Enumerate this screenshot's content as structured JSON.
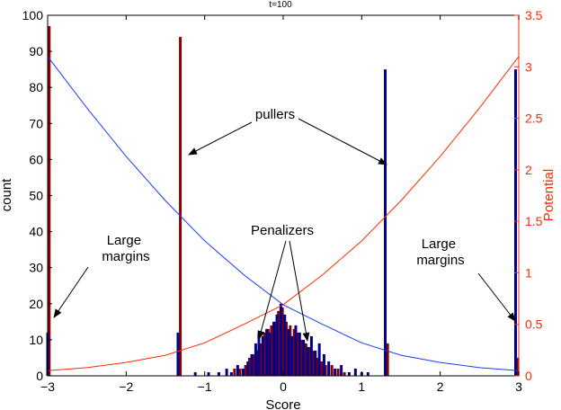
{
  "chart_data": {
    "type": "bar",
    "title": "t=100",
    "xlabel": "Score",
    "ylabel": "count",
    "y2label": "Potential",
    "xlim": [
      -3,
      3
    ],
    "ylim": [
      0,
      100
    ],
    "y2lim": [
      0,
      3.5
    ],
    "xticks": [
      -3,
      -2,
      -1,
      0,
      1,
      2,
      3
    ],
    "xtick_labels": [
      "−3",
      "−2",
      "−1",
      "0",
      "1",
      "2",
      "3"
    ],
    "yticks": [
      0,
      10,
      20,
      30,
      40,
      50,
      60,
      70,
      80,
      90,
      100
    ],
    "ytick_labels": [
      "0",
      "10",
      "20",
      "30",
      "40",
      "50",
      "60",
      "70",
      "80",
      "90",
      "100"
    ],
    "y2ticks": [
      0,
      0.5,
      1,
      1.5,
      2,
      2.5,
      3,
      3.5
    ],
    "y2tick_labels": [
      "0",
      "0.5",
      "1",
      "1.5",
      "2",
      "2.5",
      "3",
      "3.5"
    ],
    "colors": {
      "red_series": "#8b0000",
      "blue_series": "#00008b",
      "potential_red": "#ff2a00",
      "potential_blue": "#1a3cff",
      "right_axis": "#ff2a00",
      "annotation": "#000000"
    },
    "series": [
      {
        "color_key": "red_series",
        "x": [
          -2.98,
          -1.31,
          1.33,
          2.99,
          -0.62,
          -0.55,
          -0.48,
          -0.43,
          -0.38,
          -0.34,
          -0.29,
          -0.24,
          -0.19,
          -0.15,
          -0.1,
          -0.06,
          -0.01,
          0.04,
          0.09,
          0.14,
          0.19,
          0.24,
          0.29,
          0.34,
          0.39,
          0.44,
          0.49,
          0.54,
          0.62,
          0.7,
          0.78
        ],
        "values": [
          97,
          94,
          9,
          5,
          2,
          2,
          3,
          5,
          6,
          7,
          9,
          12,
          13,
          14,
          15,
          18,
          19,
          15,
          14,
          13,
          12,
          10,
          9,
          8,
          7,
          5,
          4,
          3,
          3,
          2,
          1
        ]
      },
      {
        "color_key": "blue_series",
        "x": [
          -3.0,
          -1.34,
          1.3,
          2.96,
          -1.12,
          -0.95,
          -0.82,
          -0.72,
          -0.66,
          -0.58,
          -0.51,
          -0.45,
          -0.4,
          -0.35,
          -0.31,
          -0.26,
          -0.21,
          -0.17,
          -0.12,
          -0.08,
          -0.03,
          0.02,
          0.07,
          0.11,
          0.16,
          0.21,
          0.26,
          0.31,
          0.36,
          0.41,
          0.46,
          0.52,
          0.58,
          0.66,
          0.74,
          0.84,
          0.92,
          1.0,
          1.08
        ],
        "values": [
          12,
          12,
          85,
          85,
          1,
          1,
          1,
          2,
          1,
          3,
          2,
          4,
          6,
          9,
          12,
          11,
          13,
          12,
          15,
          17,
          20,
          17,
          13,
          11,
          14,
          12,
          10,
          8,
          11,
          7,
          9,
          6,
          4,
          2,
          3,
          1,
          2,
          1,
          1
        ]
      }
    ],
    "potential_curves": [
      {
        "color_key": "potential_red",
        "x": [
          -3.0,
          -2.5,
          -2.0,
          -1.5,
          -1.0,
          -0.5,
          0.0,
          0.5,
          1.0,
          1.5,
          2.0,
          2.5,
          3.0
        ],
        "values": [
          0.05,
          0.08,
          0.13,
          0.2,
          0.32,
          0.5,
          0.69,
          0.98,
          1.31,
          1.7,
          2.13,
          2.6,
          3.1
        ]
      },
      {
        "color_key": "potential_blue",
        "x": [
          -3.0,
          -2.5,
          -2.0,
          -1.5,
          -1.0,
          -0.5,
          0.0,
          0.5,
          1.0,
          1.5,
          2.0,
          2.5,
          3.0
        ],
        "values": [
          3.1,
          2.6,
          2.13,
          1.7,
          1.31,
          0.98,
          0.69,
          0.5,
          0.32,
          0.2,
          0.13,
          0.08,
          0.05
        ]
      }
    ],
    "annotations": [
      {
        "id": "pullers",
        "text": "pullers"
      },
      {
        "id": "penalizers",
        "text": "Penalizers"
      },
      {
        "id": "large-margins-left",
        "lines": [
          "Large",
          "margins"
        ]
      },
      {
        "id": "large-margins-right",
        "lines": [
          "Large",
          "margins"
        ]
      }
    ]
  }
}
